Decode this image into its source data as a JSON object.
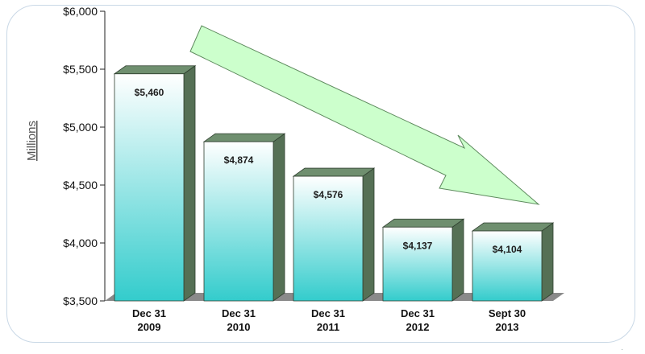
{
  "chart_data": {
    "type": "bar",
    "title": "",
    "xlabel": "",
    "ylabel": "Millions",
    "ylim": [
      3500,
      6000
    ],
    "yticks": [
      3500,
      4000,
      4500,
      5000,
      5500,
      6000
    ],
    "ytick_labels": [
      "$3,500",
      "$4,000",
      "$4,500",
      "$5,000",
      "$5,500",
      "$6,000"
    ],
    "categories": [
      {
        "line1": "Dec 31",
        "line2": "2009"
      },
      {
        "line1": "Dec 31",
        "line2": "2010"
      },
      {
        "line1": "Dec 31",
        "line2": "2011"
      },
      {
        "line1": "Dec 31",
        "line2": "2012"
      },
      {
        "line1": "Sept 30",
        "line2": "2013"
      }
    ],
    "values": [
      5460,
      4874,
      4576,
      4137,
      4104
    ],
    "value_labels": [
      "$5,460",
      "$4,874",
      "$4,576",
      "$4,137",
      "$4,104"
    ],
    "trend_annotation": "downward-arrow",
    "colors": {
      "bar_top": "#ffffff",
      "bar_bottom": "#33cccc",
      "bar_side": "#557055",
      "bar_cap": "#6f8f6f",
      "floor": "#8a8a8a",
      "arrow_fill": "#ccffcc",
      "arrow_stroke": "#5d8a5d"
    }
  }
}
